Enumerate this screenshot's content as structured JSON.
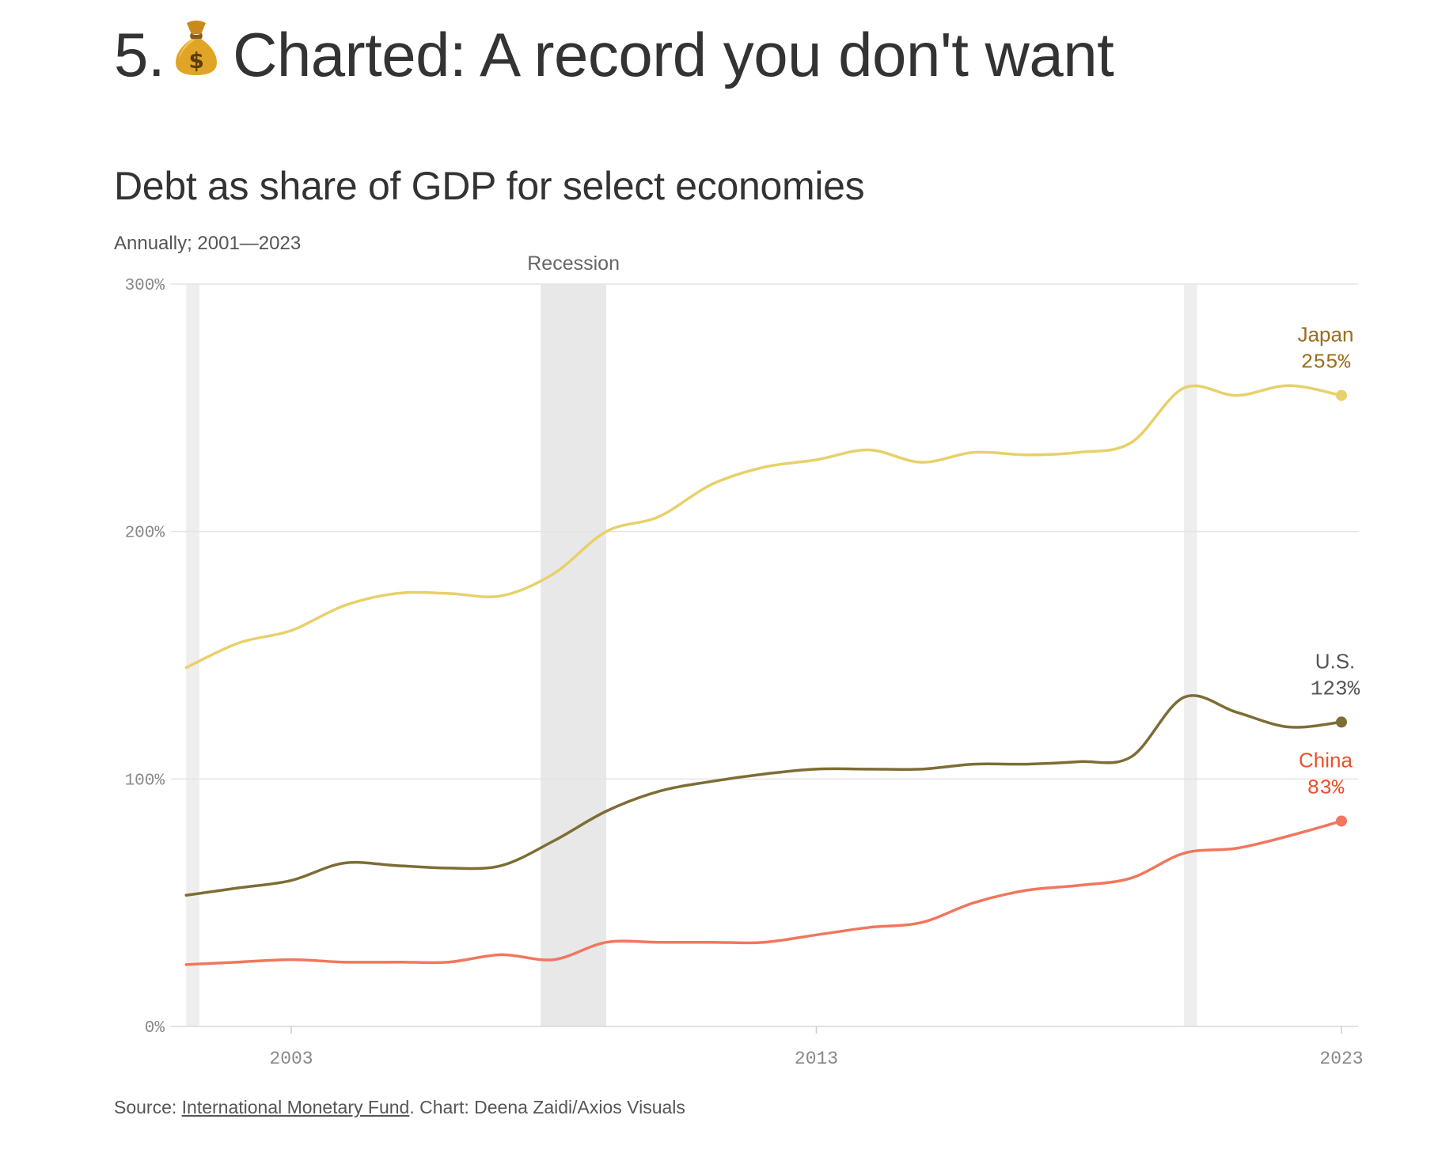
{
  "page": {
    "heading_number": "5.",
    "heading_text": "Charted: A record you don't want",
    "heading_icon": "money-bag-icon"
  },
  "chart_data": {
    "type": "line",
    "title": "Debt as share of GDP for select economies",
    "subtitle": "Annually; 2001—2023",
    "x": [
      2001,
      2002,
      2003,
      2004,
      2005,
      2006,
      2007,
      2008,
      2009,
      2010,
      2011,
      2012,
      2013,
      2014,
      2015,
      2016,
      2017,
      2018,
      2019,
      2020,
      2021,
      2022,
      2023
    ],
    "series": [
      {
        "name": "Japan",
        "end_label": "255%",
        "color": "#e8d06a",
        "label_color": "#9a6d1c",
        "values": [
          145,
          155,
          160,
          170,
          175,
          175,
          174,
          183,
          200,
          206,
          219,
          226,
          229,
          233,
          228,
          232,
          231,
          232,
          236,
          258,
          255,
          259,
          255
        ]
      },
      {
        "name": "U.S.",
        "end_label": "123%",
        "color": "#7d6d35",
        "label_color": "#555555",
        "values": [
          53,
          56,
          59,
          66,
          65,
          64,
          65,
          75,
          87,
          95,
          99,
          102,
          104,
          104,
          104,
          106,
          106,
          107,
          109,
          133,
          127,
          121,
          123
        ]
      },
      {
        "name": "China",
        "end_label": "83%",
        "color": "#f2765d",
        "label_color": "#e8512b",
        "values": [
          25,
          26,
          27,
          26,
          26,
          26,
          29,
          27,
          34,
          34,
          34,
          34,
          37,
          40,
          42,
          50,
          55,
          57,
          60,
          70,
          72,
          77,
          83
        ]
      }
    ],
    "y_ticks": [
      0,
      100,
      200,
      300
    ],
    "y_tick_labels": [
      "0%",
      "100%",
      "200%",
      "300%"
    ],
    "ylim": [
      0,
      300
    ],
    "x_ticks": [
      2003,
      2013,
      2023
    ],
    "x_tick_labels": [
      "2003",
      "2013",
      "2023"
    ],
    "xlim": [
      2000.5,
      2023.3
    ],
    "grid": true,
    "recessions": [
      {
        "start": 2001.0,
        "end": 2001.25,
        "label": ""
      },
      {
        "start": 2007.75,
        "end": 2009.0,
        "label": "Recession"
      },
      {
        "start": 2020.0,
        "end": 2020.25,
        "label": ""
      }
    ]
  },
  "footer": {
    "source_prefix": "Source: ",
    "source_link": "International Monetary Fund",
    "source_suffix": ". Chart: Deena Zaidi/Axios Visuals"
  }
}
